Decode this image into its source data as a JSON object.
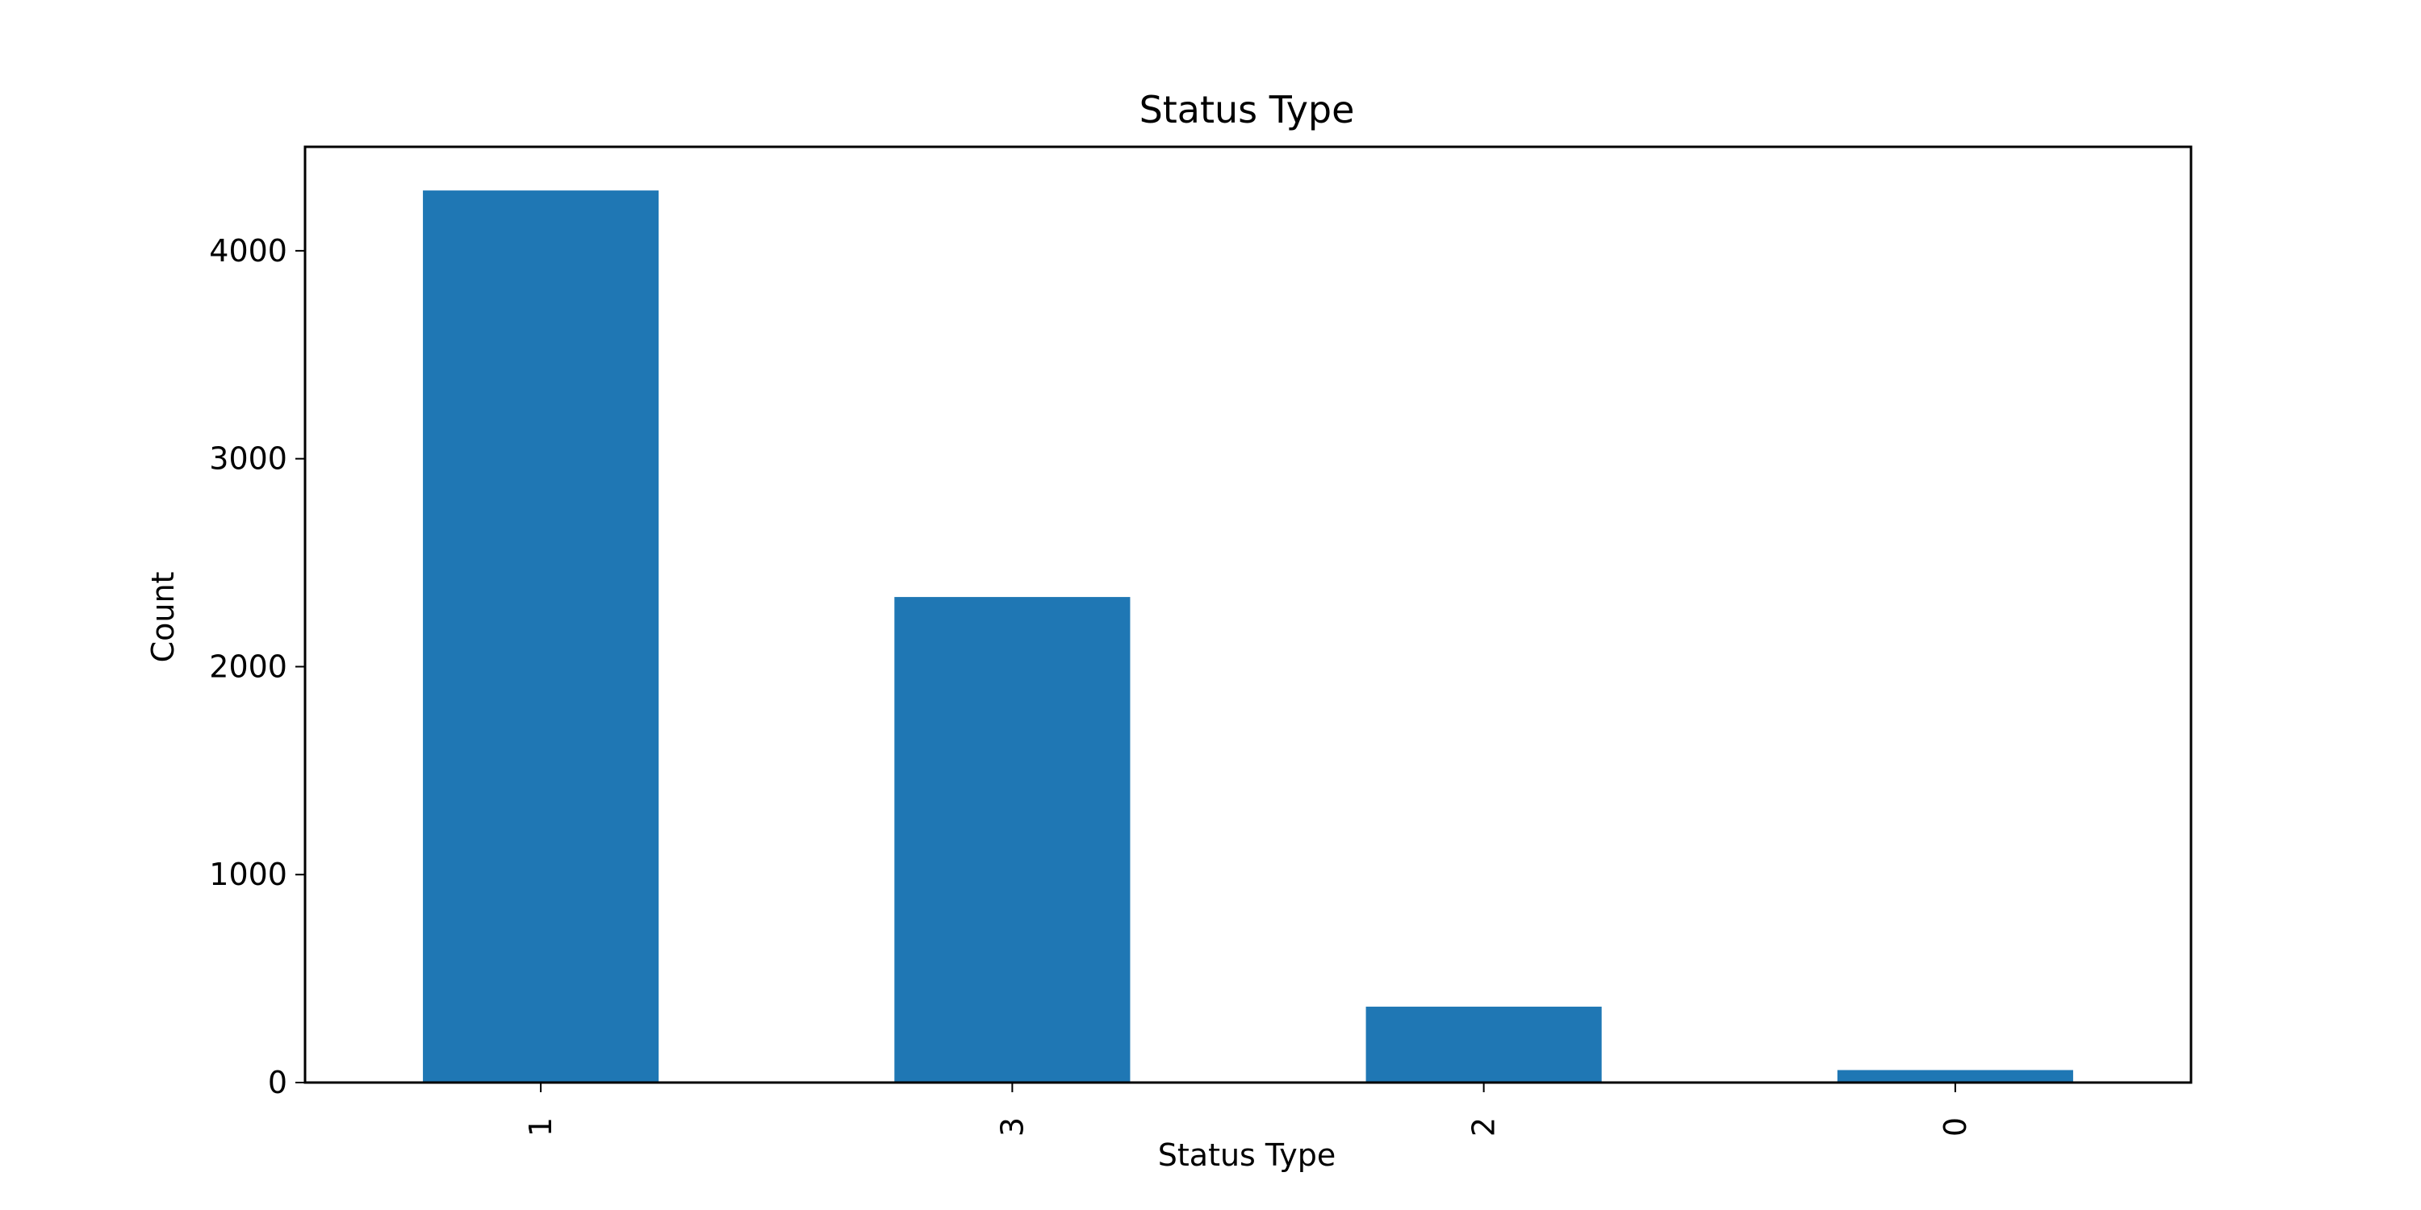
{
  "chart_data": {
    "type": "bar",
    "title": "Status Type",
    "xlabel": "Status Type",
    "ylabel": "Count",
    "categories": [
      "1",
      "3",
      "2",
      "0"
    ],
    "values": [
      4290,
      2335,
      365,
      60
    ],
    "ylim": [
      0,
      4500
    ],
    "yticks": [
      0,
      1000,
      2000,
      3000,
      4000
    ],
    "bar_color": "#1f77b4",
    "grid": false,
    "legend": "none"
  }
}
